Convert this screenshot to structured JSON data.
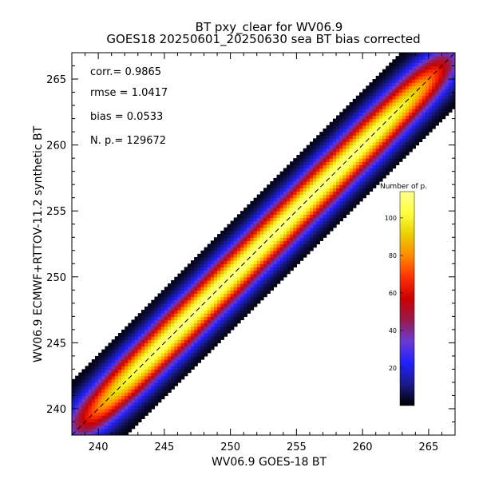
{
  "chart_data": {
    "type": "heatmap",
    "title": "BT pxy_clear for WV06.9",
    "subtitle": "GOES18 20250601_20250630 sea BT bias corrected",
    "xlabel": "WV06.9 GOES-18 BT",
    "ylabel": "WV06.9 ECMWF+RTTOV-11.2 synthetic BT",
    "xlim": [
      238,
      267
    ],
    "ylim": [
      238,
      267
    ],
    "x_ticks": [
      240,
      245,
      250,
      255,
      260,
      265
    ],
    "y_ticks": [
      240,
      245,
      250,
      255,
      260,
      265
    ],
    "x_tick_labels": [
      "240",
      "245",
      "250",
      "255",
      "260",
      "265"
    ],
    "y_tick_labels": [
      "240",
      "245",
      "250",
      "255",
      "260",
      "265"
    ],
    "reference_line": "y = x (dashed)",
    "stats": [
      {
        "label": "corr.=",
        "value": "0.9865"
      },
      {
        "label": "rmse =",
        "value": "1.0417"
      },
      {
        "label": "bias =",
        "value": "0.0533"
      },
      {
        "label": "N. p.=",
        "value": "129672"
      }
    ],
    "colorbar": {
      "title": "Number of p.",
      "range": [
        0,
        114
      ],
      "ticks": [
        20,
        40,
        60,
        80,
        100
      ],
      "tick_labels": [
        "20",
        "40",
        "60",
        "80",
        "100"
      ],
      "colormap": [
        "#000000",
        "#1a1a8c",
        "#2020ff",
        "#6a3ad0",
        "#9a1a4a",
        "#cc0000",
        "#ff3000",
        "#ff8a00",
        "#e8d000",
        "#ffff40",
        "#ffff90"
      ]
    },
    "density_model": {
      "peak_count": 112,
      "scatter_sigma_perp": 1.0,
      "x_range_of_data": [
        238,
        267
      ]
    }
  }
}
